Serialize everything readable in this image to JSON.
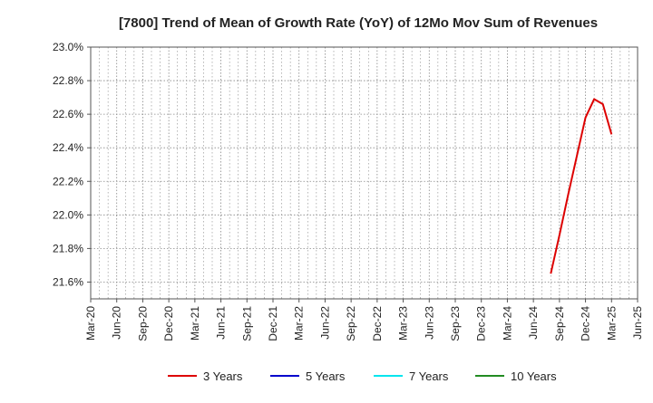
{
  "chart_data": {
    "type": "line",
    "title": "[7800]  Trend of Mean of Growth Rate (YoY) of 12Mo Mov Sum of Revenues",
    "xlabel": "",
    "ylabel": "",
    "x_ticks": [
      "Mar-20",
      "Jun-20",
      "Sep-20",
      "Dec-20",
      "Mar-21",
      "Jun-21",
      "Sep-21",
      "Dec-21",
      "Mar-22",
      "Jun-22",
      "Sep-22",
      "Dec-22",
      "Mar-23",
      "Jun-23",
      "Sep-23",
      "Dec-23",
      "Mar-24",
      "Jun-24",
      "Sep-24",
      "Dec-24",
      "Mar-25",
      "Jun-25"
    ],
    "y_ticks": [
      "21.6%",
      "21.8%",
      "22.0%",
      "22.2%",
      "22.4%",
      "22.6%",
      "22.8%",
      "23.0%"
    ],
    "ylim": [
      21.5,
      23.0
    ],
    "grid": true,
    "legend_position": "bottom",
    "series": [
      {
        "name": "3 Years",
        "color": "#dd0000",
        "x": [
          "Aug-24",
          "Sep-24",
          "Oct-24",
          "Nov-24",
          "Dec-24",
          "Jan-25",
          "Feb-25",
          "Mar-25"
        ],
        "values": [
          21.65,
          21.88,
          22.12,
          22.35,
          22.58,
          22.69,
          22.66,
          22.48
        ]
      },
      {
        "name": "5 Years",
        "color": "#0000cc",
        "x": [],
        "values": []
      },
      {
        "name": "7 Years",
        "color": "#00e5ee",
        "x": [],
        "values": []
      },
      {
        "name": "10 Years",
        "color": "#228b22",
        "x": [],
        "values": []
      }
    ]
  }
}
